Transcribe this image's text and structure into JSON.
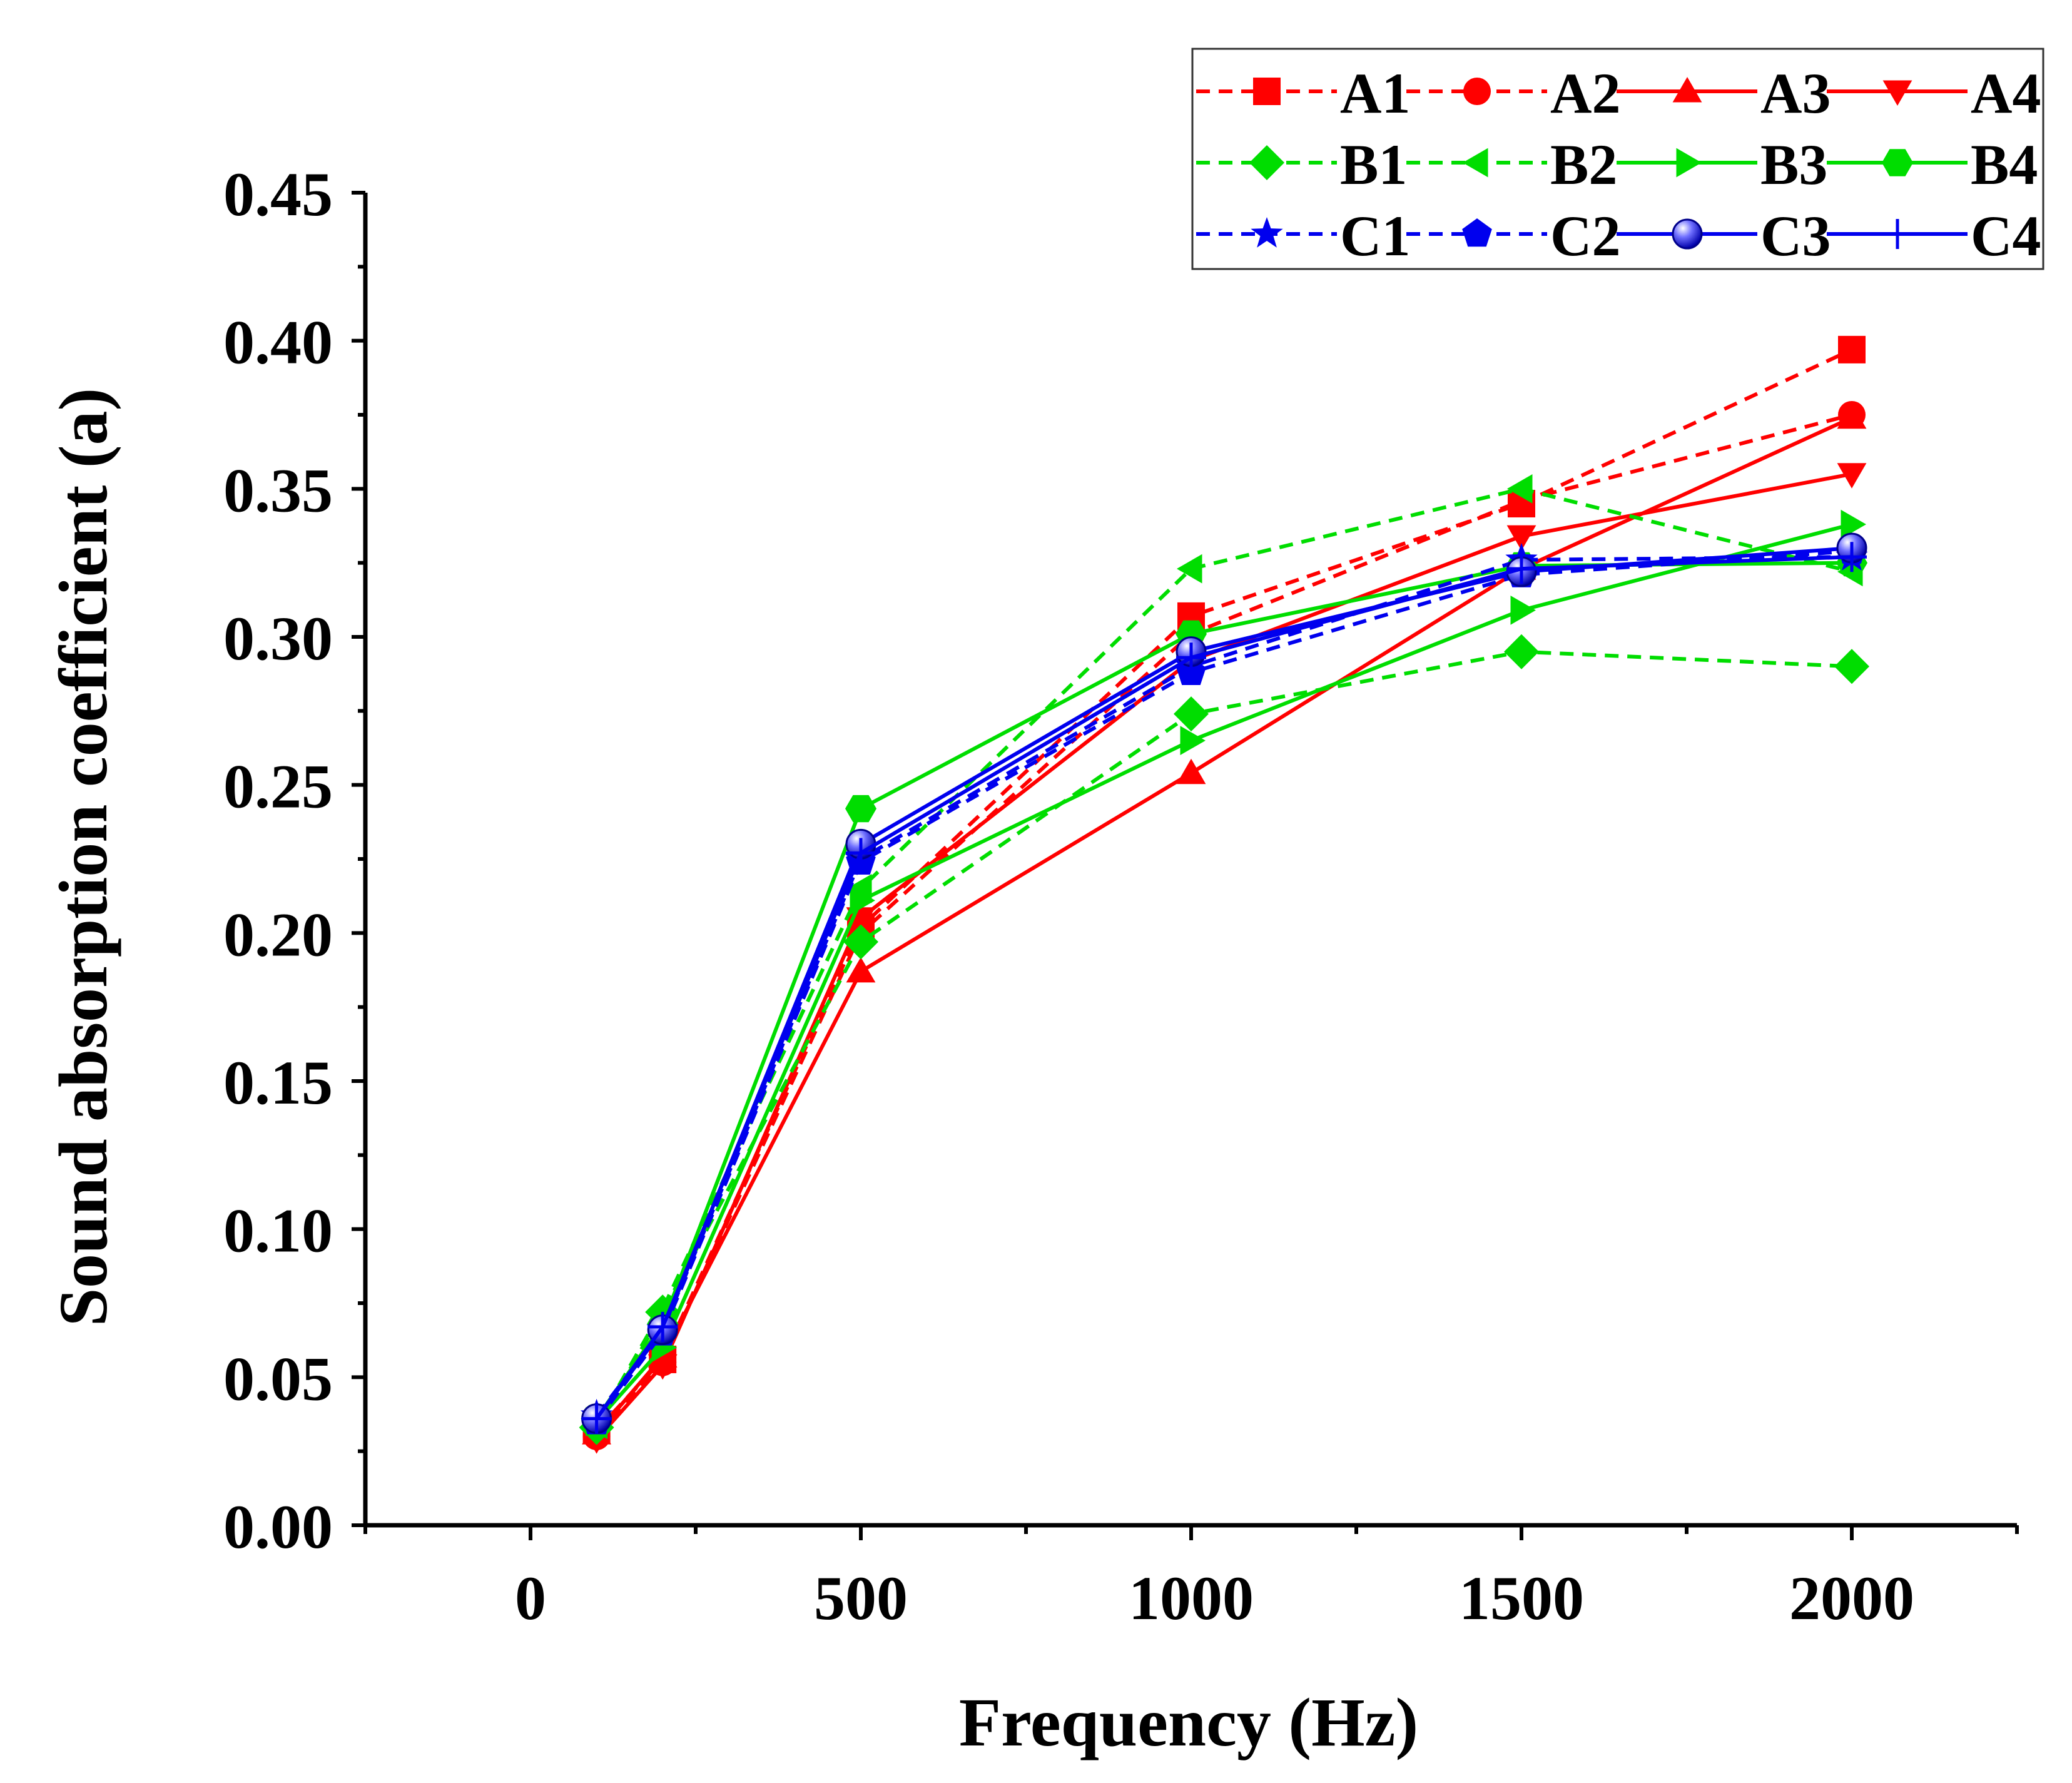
{
  "chart_data": {
    "type": "line",
    "title": "",
    "xlabel": "Frequency (Hz)",
    "ylabel": "Sound absorption coefficient (a)",
    "xlim": [
      -250,
      2250
    ],
    "ylim": [
      0,
      0.45
    ],
    "x_ticks": [
      0,
      500,
      1000,
      1500,
      2000
    ],
    "x_tick_labels": [
      "0",
      "500",
      "1000",
      "1500",
      "2000"
    ],
    "y_ticks": [
      0,
      0.05,
      0.1,
      0.15,
      0.2,
      0.25,
      0.3,
      0.35,
      0.4,
      0.45
    ],
    "y_tick_labels": [
      "0.00",
      "0.05",
      "0.10",
      "0.15",
      "0.20",
      "0.25",
      "0.30",
      "0.35",
      "0.40",
      "0.45"
    ],
    "legend_position": "top-right",
    "grid": false,
    "x": [
      100,
      200,
      500,
      1000,
      1500,
      2000
    ],
    "series": [
      {
        "name": "A1",
        "color": "#ff0000",
        "dash": "dashed",
        "marker": "square",
        "values": [
          0.032,
          0.056,
          0.202,
          0.307,
          0.345,
          0.397
        ]
      },
      {
        "name": "A2",
        "color": "#ff0000",
        "dash": "dashed",
        "marker": "circle",
        "values": [
          0.03,
          0.055,
          0.2,
          0.301,
          0.346,
          0.375
        ]
      },
      {
        "name": "A3",
        "color": "#ff0000",
        "dash": "solid",
        "marker": "triangle-up",
        "values": [
          0.031,
          0.057,
          0.187,
          0.254,
          0.323,
          0.374
        ]
      },
      {
        "name": "A4",
        "color": "#ff0000",
        "dash": "solid",
        "marker": "triangle-down",
        "values": [
          0.029,
          0.054,
          0.205,
          0.292,
          0.334,
          0.355
        ]
      },
      {
        "name": "B1",
        "color": "#00dd00",
        "dash": "dashed",
        "marker": "diamond",
        "values": [
          0.033,
          0.072,
          0.197,
          0.274,
          0.295,
          0.29
        ]
      },
      {
        "name": "B2",
        "color": "#00dd00",
        "dash": "dashed",
        "marker": "triangle-left",
        "values": [
          0.034,
          0.073,
          0.215,
          0.323,
          0.35,
          0.322
        ]
      },
      {
        "name": "B3",
        "color": "#00dd00",
        "dash": "solid",
        "marker": "triangle-right",
        "values": [
          0.035,
          0.06,
          0.211,
          0.265,
          0.309,
          0.338
        ]
      },
      {
        "name": "B4",
        "color": "#00dd00",
        "dash": "solid",
        "marker": "hexagon",
        "values": [
          0.036,
          0.068,
          0.242,
          0.301,
          0.324,
          0.325
        ]
      },
      {
        "name": "C1",
        "color": "#0000ee",
        "dash": "dashed",
        "marker": "star",
        "values": [
          0.037,
          0.066,
          0.225,
          0.29,
          0.326,
          0.327
        ]
      },
      {
        "name": "C2",
        "color": "#0000ee",
        "dash": "dashed",
        "marker": "pentagon",
        "values": [
          0.035,
          0.065,
          0.224,
          0.288,
          0.321,
          0.329
        ]
      },
      {
        "name": "C3",
        "color": "#0000ee",
        "dash": "solid",
        "marker": "sphere",
        "values": [
          0.036,
          0.066,
          0.23,
          0.295,
          0.322,
          0.33
        ]
      },
      {
        "name": "C4",
        "color": "#0000ee",
        "dash": "solid",
        "marker": "plus",
        "values": [
          0.036,
          0.067,
          0.227,
          0.293,
          0.323,
          0.327
        ]
      }
    ]
  }
}
